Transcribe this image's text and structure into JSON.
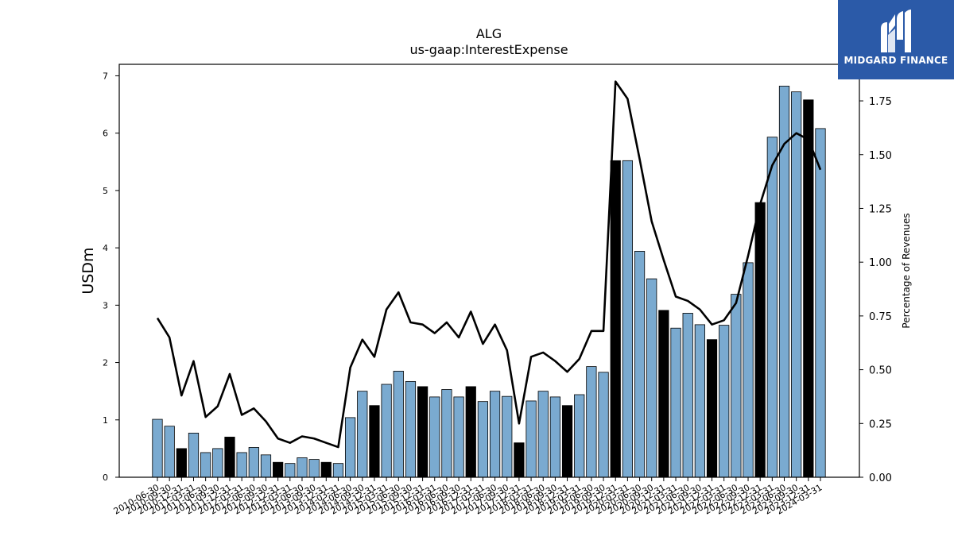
{
  "brand": {
    "name": "MIDGARD FINANCE",
    "bg_color": "#2b5aa8",
    "icon": "midgard-logo-icon"
  },
  "chart_data": {
    "type": "bar",
    "title": "ALG",
    "subtitle": "us-gaap:InterestExpense",
    "ylabel": "USDm",
    "y2label": "Percentage of Revenues",
    "ylim": [
      0,
      7.2
    ],
    "y2lim": [
      0,
      1.92
    ],
    "yticks": [
      "0",
      "1",
      "2",
      "3",
      "4",
      "5",
      "6",
      "7"
    ],
    "y2ticks": [
      "0.00",
      "0.25",
      "0.50",
      "0.75",
      "1.00",
      "1.25",
      "1.50",
      "1.75"
    ],
    "grid": false,
    "bar_color": "#7aaad0",
    "highlight_color": "#000000",
    "line_color": "#000000",
    "categories": [
      "2010-06-30",
      "2010-09-30",
      "2010-12-31",
      "2011-03-31",
      "2011-06-30",
      "2011-09-30",
      "2011-12-31",
      "2012-03-31",
      "2012-06-30",
      "2012-09-30",
      "2012-12-31",
      "2013-03-31",
      "2013-06-30",
      "2013-09-30",
      "2013-12-31",
      "2014-03-31",
      "2014-06-30",
      "2014-09-30",
      "2014-12-31",
      "2015-03-31",
      "2015-06-30",
      "2015-09-30",
      "2015-12-31",
      "2016-03-31",
      "2016-06-30",
      "2016-09-30",
      "2016-12-31",
      "2017-03-31",
      "2017-06-30",
      "2017-09-30",
      "2017-12-31",
      "2018-03-31",
      "2018-06-30",
      "2018-09-30",
      "2018-12-31",
      "2019-03-31",
      "2019-06-30",
      "2019-09-30",
      "2019-12-31",
      "2020-03-31",
      "2020-06-30",
      "2020-09-30",
      "2020-12-31",
      "2021-03-31",
      "2021-06-30",
      "2021-09-30",
      "2021-12-31",
      "2022-03-31",
      "2022-06-30",
      "2022-09-30",
      "2022-12-31",
      "2023-03-31",
      "2023-06-30",
      "2023-09-30",
      "2023-12-31",
      "2024-03-31"
    ],
    "values": [
      1.01,
      0.89,
      0.5,
      0.77,
      0.43,
      0.5,
      0.7,
      0.43,
      0.52,
      0.39,
      0.26,
      0.24,
      0.34,
      0.31,
      0.26,
      0.24,
      1.04,
      1.5,
      1.25,
      1.62,
      1.85,
      1.67,
      1.58,
      1.4,
      1.53,
      1.4,
      1.58,
      1.32,
      1.5,
      1.41,
      0.6,
      1.33,
      1.5,
      1.4,
      1.25,
      1.44,
      1.93,
      1.83,
      5.52,
      5.52,
      3.94,
      3.46,
      2.91,
      2.6,
      2.86,
      2.66,
      2.4,
      2.65,
      3.19,
      3.74,
      4.79,
      5.93,
      6.82,
      6.72,
      6.58,
      6.08
    ],
    "highlighted": [
      false,
      false,
      true,
      false,
      false,
      false,
      true,
      false,
      false,
      false,
      true,
      false,
      false,
      false,
      true,
      false,
      false,
      false,
      true,
      false,
      false,
      false,
      true,
      false,
      false,
      false,
      true,
      false,
      false,
      false,
      true,
      false,
      false,
      false,
      true,
      false,
      false,
      false,
      true,
      false,
      false,
      false,
      true,
      false,
      false,
      false,
      true,
      false,
      false,
      false,
      true,
      false,
      false,
      false,
      true,
      false
    ],
    "pct_of_revenues": [
      0.74,
      0.65,
      0.38,
      0.54,
      0.28,
      0.33,
      0.48,
      0.29,
      0.32,
      0.26,
      0.18,
      0.16,
      0.19,
      0.18,
      0.16,
      0.14,
      0.51,
      0.64,
      0.56,
      0.78,
      0.86,
      0.72,
      0.71,
      0.67,
      0.72,
      0.65,
      0.77,
      0.62,
      0.71,
      0.59,
      0.25,
      0.56,
      0.58,
      0.54,
      0.49,
      0.55,
      0.68,
      0.68,
      1.84,
      1.76,
      1.48,
      1.19,
      1.01,
      0.84,
      0.82,
      0.78,
      0.71,
      0.73,
      0.81,
      1.03,
      1.27,
      1.45,
      1.55,
      1.6,
      1.57,
      1.43
    ]
  }
}
